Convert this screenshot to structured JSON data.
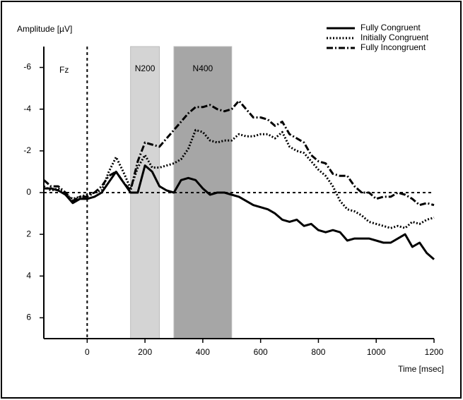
{
  "chart_data": {
    "type": "line",
    "y_axis_label": "Amplitude [µV]",
    "x_axis_label": "Time [msec]",
    "annotation": "Fz",
    "y_inverted": true,
    "xlim": [
      -150,
      1200
    ],
    "ylim": [
      -7,
      7
    ],
    "xticks": [
      0,
      200,
      400,
      600,
      800,
      1000,
      1200
    ],
    "yticks": [
      -6,
      -4,
      -2,
      0,
      2,
      4,
      6
    ],
    "bands": [
      {
        "label": "N200",
        "start": 150,
        "end": 250,
        "color": "#d4d4d4"
      },
      {
        "label": "N400",
        "start": 300,
        "end": 500,
        "color": "#a6a6a6"
      }
    ],
    "legend": "top-right",
    "x": [
      -150,
      -125,
      -100,
      -75,
      -50,
      -25,
      0,
      25,
      50,
      75,
      100,
      125,
      150,
      175,
      200,
      225,
      250,
      275,
      300,
      325,
      350,
      375,
      400,
      425,
      450,
      475,
      500,
      525,
      550,
      575,
      600,
      625,
      650,
      675,
      700,
      725,
      750,
      775,
      800,
      825,
      850,
      875,
      900,
      925,
      950,
      975,
      1000,
      1025,
      1050,
      1075,
      1100,
      1125,
      1150,
      1175,
      1200
    ],
    "series": [
      {
        "name": "Fully Congruent",
        "color": "#000000",
        "style": "solid",
        "values": [
          -0.2,
          -0.2,
          -0.1,
          0.1,
          0.5,
          0.3,
          0.3,
          0.2,
          0,
          -0.5,
          -1.0,
          -0.5,
          0,
          0,
          -1.3,
          -1.0,
          -0.3,
          -0.1,
          0,
          -0.6,
          -0.7,
          -0.6,
          -0.2,
          0.1,
          0,
          0,
          0.1,
          0.2,
          0.4,
          0.6,
          0.7,
          0.8,
          1.0,
          1.3,
          1.4,
          1.3,
          1.6,
          1.5,
          1.8,
          1.9,
          1.8,
          1.9,
          2.3,
          2.2,
          2.2,
          2.2,
          2.3,
          2.4,
          2.4,
          2.2,
          2.0,
          2.6,
          2.4,
          2.9,
          3.2
        ]
      },
      {
        "name": "Initially Congruent",
        "color": "#000000",
        "style": "dotted",
        "values": [
          -0.3,
          -0.1,
          -0.2,
          0.1,
          0.3,
          0.2,
          0.1,
          0,
          -0.1,
          -1.0,
          -1.7,
          -1.0,
          -0.2,
          -1.2,
          -1.8,
          -1.2,
          -1.2,
          -1.3,
          -1.4,
          -1.6,
          -2.1,
          -3.0,
          -2.9,
          -2.5,
          -2.4,
          -2.5,
          -2.5,
          -2.8,
          -2.7,
          -2.7,
          -2.8,
          -2.8,
          -2.6,
          -2.9,
          -2.2,
          -2.0,
          -1.9,
          -1.5,
          -1.1,
          -0.8,
          -0.3,
          0.4,
          0.8,
          0.9,
          1.1,
          1.4,
          1.5,
          1.6,
          1.7,
          1.6,
          1.7,
          1.4,
          1.5,
          1.3,
          1.2
        ]
      },
      {
        "name": "Fully Incongruent",
        "color": "#000000",
        "style": "dashdot",
        "values": [
          -0.6,
          -0.3,
          -0.3,
          0,
          0.4,
          0.2,
          0.2,
          0,
          -0.3,
          -0.8,
          -1.0,
          -0.5,
          -0.1,
          -1.5,
          -2.4,
          -2.3,
          -2.2,
          -2.6,
          -3.0,
          -3.4,
          -3.8,
          -4.1,
          -4.1,
          -4.2,
          -4.0,
          -3.9,
          -4.0,
          -4.4,
          -4.0,
          -3.6,
          -3.6,
          -3.5,
          -3.2,
          -3.4,
          -2.8,
          -2.6,
          -2.4,
          -1.8,
          -1.5,
          -1.4,
          -0.9,
          -0.8,
          -0.8,
          -0.3,
          0,
          0,
          0.3,
          0.2,
          0.2,
          0,
          0.1,
          0.3,
          0.6,
          0.5,
          0.6
        ]
      }
    ]
  }
}
